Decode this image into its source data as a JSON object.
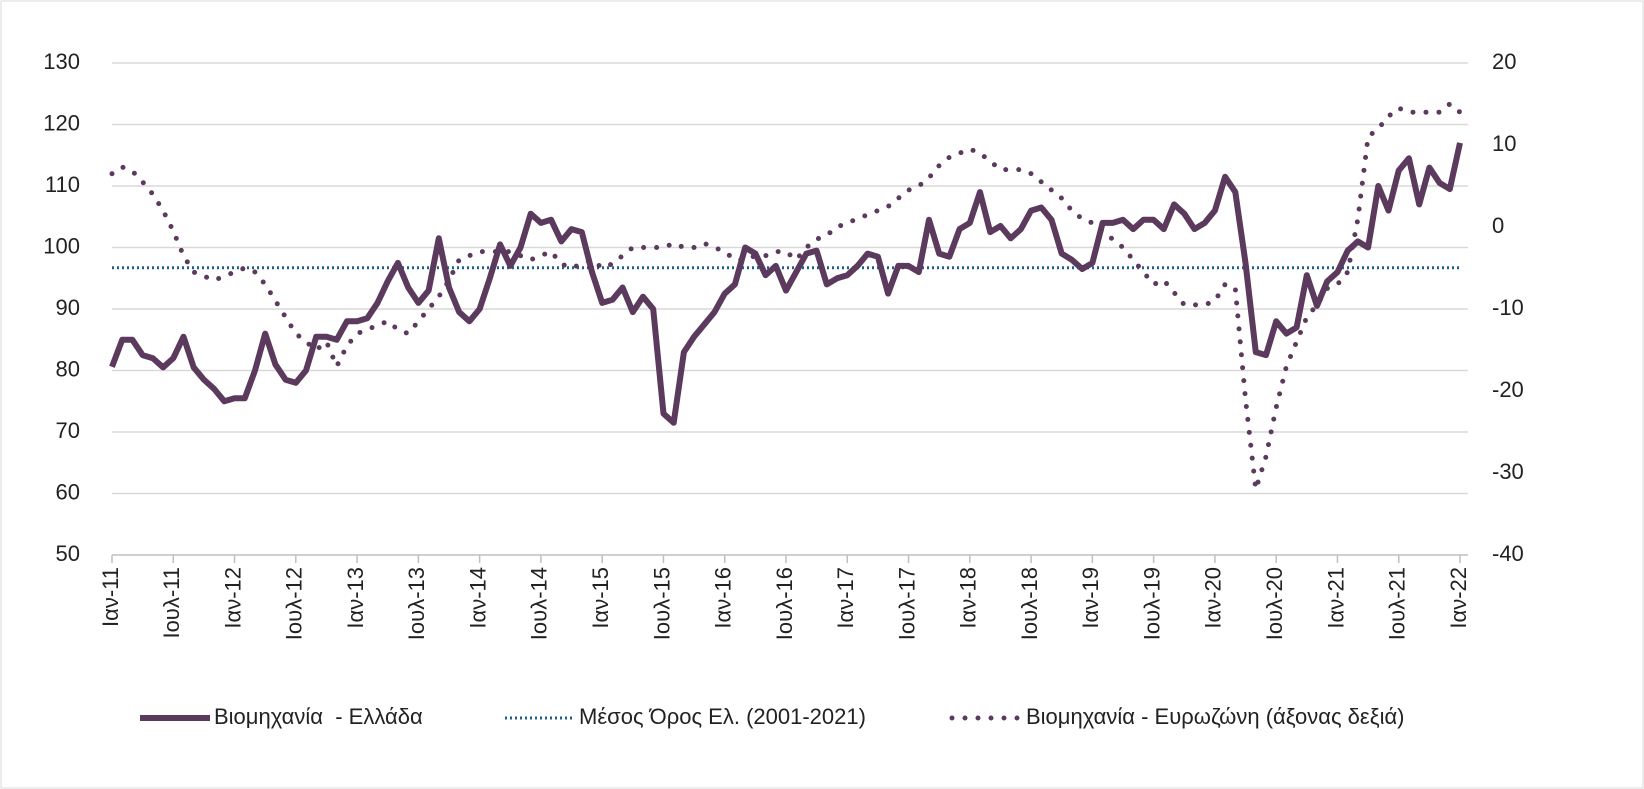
{
  "chart_data": {
    "type": "line",
    "categories": [
      "Ιαν-11",
      null,
      null,
      null,
      null,
      null,
      "Ιουλ-11",
      null,
      null,
      null,
      null,
      null,
      "Ιαν-12",
      null,
      null,
      null,
      null,
      null,
      "Ιουλ-12",
      null,
      null,
      null,
      null,
      null,
      "Ιαν-13",
      null,
      null,
      null,
      null,
      null,
      "Ιουλ-13",
      null,
      null,
      null,
      null,
      null,
      "Ιαν-14",
      null,
      null,
      null,
      null,
      null,
      "Ιουλ-14",
      null,
      null,
      null,
      null,
      null,
      "Ιαν-15",
      null,
      null,
      null,
      null,
      null,
      "Ιουλ-15",
      null,
      null,
      null,
      null,
      null,
      "Ιαν-16",
      null,
      null,
      null,
      null,
      null,
      "Ιουλ-16",
      null,
      null,
      null,
      null,
      null,
      "Ιαν-17",
      null,
      null,
      null,
      null,
      null,
      "Ιουλ-17",
      null,
      null,
      null,
      null,
      null,
      "Ιαν-18",
      null,
      null,
      null,
      null,
      null,
      "Ιουλ-18",
      null,
      null,
      null,
      null,
      null,
      "Ιαν-19",
      null,
      null,
      null,
      null,
      null,
      "Ιουλ-19",
      null,
      null,
      null,
      null,
      null,
      "Ιαν-20",
      null,
      null,
      null,
      null,
      null,
      "Ιουλ-20",
      null,
      null,
      null,
      null,
      null,
      "Ιαν-21",
      null,
      null,
      null,
      null,
      null,
      "Ιουλ-21",
      null,
      null,
      null,
      null,
      null,
      "Ιαν-22"
    ],
    "series": [
      {
        "name": "Βιομηχανία  - Ελλάδα",
        "color": "#5b3a5d",
        "style": "solid",
        "axis": "y",
        "values": [
          80.6,
          85,
          85,
          82.5,
          82,
          80.5,
          82,
          85.5,
          80.5,
          78.5,
          77,
          75,
          75.5,
          75.5,
          80,
          86,
          81,
          78.5,
          78,
          80,
          85.5,
          85.5,
          85,
          88,
          88,
          88.5,
          91,
          94.5,
          97.5,
          93.5,
          91,
          93,
          101.5,
          93.5,
          89.5,
          88,
          90,
          95,
          100.5,
          97,
          100,
          105.5,
          104,
          104.5,
          101,
          103,
          102.5,
          96,
          91,
          91.5,
          93.5,
          89.5,
          92,
          90,
          73,
          71.5,
          83,
          85.5,
          87.5,
          89.5,
          92.5,
          94,
          100,
          99,
          95.5,
          97,
          93,
          96,
          99,
          99.5,
          94,
          95,
          95.5,
          97,
          99,
          98.5,
          92.5,
          97,
          97,
          96,
          104.5,
          99,
          98.5,
          103,
          104,
          109,
          102.5,
          103.5,
          101.5,
          103,
          106,
          106.5,
          104.5,
          99,
          98,
          96.5,
          97.5,
          104,
          104,
          104.5,
          103,
          104.5,
          104.5,
          103,
          107,
          105.5,
          103,
          104,
          106,
          111.5,
          109,
          97.5,
          83,
          82.5,
          88,
          86,
          87,
          95.5,
          90.5,
          94.5,
          96,
          99.5,
          101,
          100,
          110,
          106,
          112.5,
          114.5,
          107,
          113,
          110.5,
          109.5,
          117
        ]
      },
      {
        "name": "Βιομηχανία - Ευρωζώνη (άξονας δεξιά)",
        "color": "#5b3a5d",
        "style": "dotted",
        "axis": "y2",
        "values": [
          6.5,
          7.3,
          6.8,
          5.5,
          4,
          2,
          -0.5,
          -3.5,
          -5.5,
          -6,
          -6.5,
          -6,
          -5.5,
          -5,
          -5.5,
          -7,
          -9,
          -11,
          -13,
          -14,
          -15,
          -14,
          -17,
          -14.5,
          -13,
          -12.5,
          -12,
          -11.5,
          -12.5,
          -13,
          -11.5,
          -10,
          -8.5,
          -6.5,
          -4,
          -3.5,
          -3,
          -3,
          -3,
          -3,
          -3.5,
          -4,
          -3.5,
          -3,
          -4.5,
          -5,
          -4.5,
          -4,
          -5,
          -4.5,
          -3.5,
          -2.5,
          -2.5,
          -2.5,
          -2.5,
          -2,
          -2.5,
          -2.5,
          -2,
          -2.5,
          -3,
          -4,
          -4,
          -3.5,
          -3.5,
          -3,
          -3,
          -4,
          -2.5,
          -1.5,
          -1,
          0,
          0.5,
          1,
          1.5,
          2,
          2.5,
          3.5,
          4.5,
          5,
          6,
          7.5,
          8.5,
          9,
          9.5,
          9,
          8,
          7,
          7,
          7,
          6.5,
          5.5,
          4.5,
          3.5,
          2,
          1,
          0.5,
          -0.5,
          -1.5,
          -2.5,
          -4,
          -5.5,
          -7,
          -6.5,
          -8,
          -9.5,
          -9.5,
          -9.5,
          -9,
          -7,
          -7.5,
          -21,
          -32,
          -28,
          -22,
          -17,
          -14,
          -11,
          -9.5,
          -7.5,
          -7,
          -5.5,
          1,
          11,
          12,
          13.5,
          14.5,
          14,
          14,
          14,
          14,
          15,
          14
        ]
      }
    ],
    "reference_line": {
      "name": "Μέσος Όρος Ελ. (2001-2021)",
      "value": 96.7,
      "color": "#1f5f8b",
      "style": "dotted",
      "axis": "y"
    },
    "ylim": [
      50,
      130
    ],
    "yticks": [
      50,
      60,
      70,
      80,
      90,
      100,
      110,
      120,
      130
    ],
    "y2lim": [
      -40,
      20
    ],
    "y2ticks": [
      -40,
      -30,
      -20,
      -10,
      0,
      10,
      20
    ],
    "grid": true,
    "legend": "bottom"
  }
}
